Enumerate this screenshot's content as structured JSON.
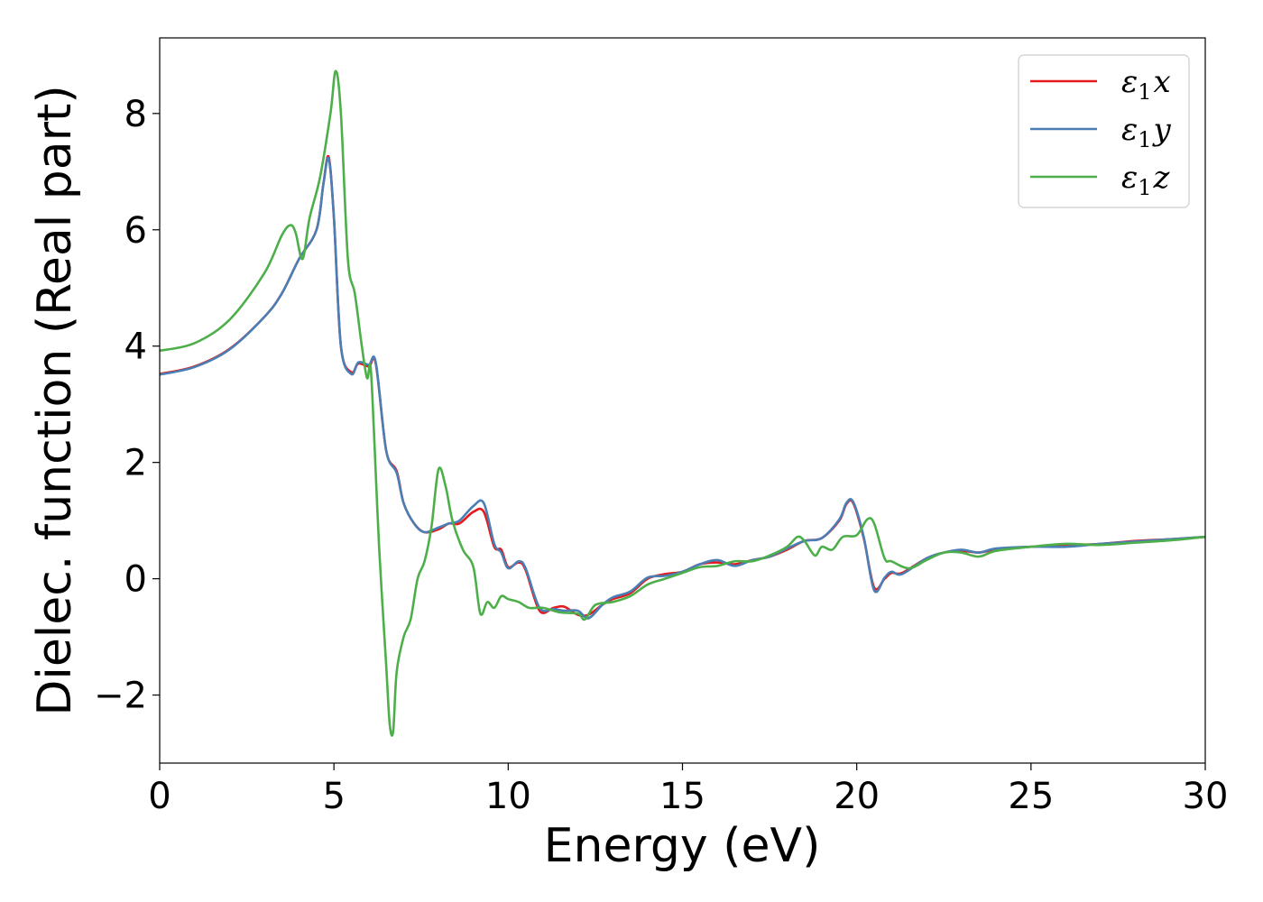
{
  "chart_data": {
    "type": "line",
    "title": "",
    "xlabel": "Energy (eV)",
    "ylabel": "Dielec. function (Real part)",
    "xlim": [
      0,
      30
    ],
    "ylim": [
      -3.17,
      9.3
    ],
    "grid": false,
    "legend_position": "top-right",
    "x_ticks": [
      0,
      5,
      10,
      15,
      20,
      25,
      30
    ],
    "x_tick_labels": [
      "0",
      "5",
      "10",
      "15",
      "20",
      "25",
      "30"
    ],
    "y_ticks": [
      -2,
      0,
      2,
      4,
      6,
      8
    ],
    "y_tick_labels": [
      "−2",
      "0",
      "2",
      "4",
      "6",
      "8"
    ],
    "series": [
      {
        "name": "ε₁x",
        "legend_base": "ε",
        "legend_sub": "1",
        "legend_suffix": "x",
        "color": "#e41a1c",
        "x": [
          0,
          1,
          2,
          3,
          3.5,
          4,
          4.5,
          4.7,
          4.85,
          5.0,
          5.2,
          5.5,
          5.7,
          6.0,
          6.2,
          6.5,
          6.8,
          7.0,
          7.3,
          7.6,
          8.0,
          8.3,
          8.6,
          9.0,
          9.3,
          9.6,
          9.8,
          10.0,
          10.3,
          10.5,
          10.9,
          11.3,
          11.6,
          12.0,
          12.3,
          12.7,
          13.0,
          13.5,
          14.0,
          14.5,
          15.0,
          15.5,
          16.0,
          16.5,
          17.0,
          17.5,
          18.0,
          18.5,
          19.0,
          19.5,
          19.7,
          19.9,
          20.2,
          20.5,
          20.8,
          21.0,
          21.3,
          22.0,
          22.5,
          23.0,
          23.5,
          24.0,
          25.0,
          26.0,
          27.0,
          28.0,
          29.0,
          30.0
        ],
        "y": [
          3.52,
          3.65,
          3.95,
          4.5,
          4.9,
          5.5,
          6.0,
          6.8,
          7.25,
          6.2,
          4.0,
          3.55,
          3.7,
          3.65,
          3.7,
          2.2,
          1.85,
          1.3,
          0.95,
          0.8,
          0.85,
          0.95,
          0.95,
          1.15,
          1.15,
          0.55,
          0.5,
          0.2,
          0.28,
          0.15,
          -0.55,
          -0.5,
          -0.48,
          -0.62,
          -0.62,
          -0.45,
          -0.35,
          -0.25,
          0.0,
          0.08,
          0.12,
          0.25,
          0.28,
          0.25,
          0.32,
          0.38,
          0.5,
          0.65,
          0.7,
          1.0,
          1.28,
          1.3,
          0.7,
          -0.15,
          0.0,
          0.1,
          0.1,
          0.35,
          0.45,
          0.48,
          0.45,
          0.5,
          0.55,
          0.57,
          0.6,
          0.65,
          0.68,
          0.72
        ]
      },
      {
        "name": "ε₁y",
        "legend_base": "ε",
        "legend_sub": "1",
        "legend_suffix": "y",
        "color": "#4a7fb5",
        "x": [
          0,
          1,
          2,
          3,
          3.5,
          4,
          4.5,
          4.7,
          4.85,
          5.0,
          5.2,
          5.5,
          5.7,
          6.0,
          6.2,
          6.5,
          6.8,
          7.0,
          7.3,
          7.6,
          8.0,
          8.3,
          8.6,
          9.0,
          9.3,
          9.6,
          9.8,
          10.0,
          10.3,
          10.5,
          10.9,
          11.3,
          11.6,
          12.0,
          12.3,
          12.7,
          13.0,
          13.5,
          14.0,
          14.5,
          15.0,
          15.5,
          16.0,
          16.5,
          17.0,
          17.5,
          18.0,
          18.5,
          19.0,
          19.5,
          19.7,
          19.9,
          20.2,
          20.5,
          20.8,
          21.0,
          21.3,
          22.0,
          22.5,
          23.0,
          23.5,
          24.0,
          25.0,
          26.0,
          27.0,
          28.0,
          29.0,
          30.0
        ],
        "y": [
          3.51,
          3.64,
          3.94,
          4.5,
          4.9,
          5.5,
          6.0,
          6.8,
          7.22,
          6.2,
          4.0,
          3.52,
          3.72,
          3.68,
          3.72,
          2.2,
          1.82,
          1.3,
          0.95,
          0.8,
          0.88,
          0.95,
          1.0,
          1.25,
          1.3,
          0.6,
          0.45,
          0.18,
          0.3,
          0.18,
          -0.5,
          -0.52,
          -0.55,
          -0.55,
          -0.68,
          -0.45,
          -0.32,
          -0.22,
          0.02,
          0.05,
          0.12,
          0.25,
          0.32,
          0.22,
          0.32,
          0.38,
          0.52,
          0.65,
          0.7,
          1.02,
          1.3,
          1.32,
          0.72,
          -0.2,
          0.02,
          0.12,
          0.08,
          0.35,
          0.45,
          0.5,
          0.45,
          0.52,
          0.55,
          0.55,
          0.6,
          0.64,
          0.68,
          0.72
        ]
      },
      {
        "name": "ε₁z",
        "legend_base": "ε",
        "legend_sub": "1",
        "legend_suffix": "z",
        "color": "#4daf4a",
        "x": [
          0,
          1,
          2,
          3,
          3.5,
          3.75,
          3.9,
          4.1,
          4.3,
          4.6,
          4.9,
          5.05,
          5.2,
          5.4,
          5.6,
          5.8,
          5.95,
          6.05,
          6.15,
          6.3,
          6.5,
          6.6,
          6.7,
          6.8,
          7.0,
          7.2,
          7.4,
          7.6,
          7.8,
          8.0,
          8.2,
          8.4,
          8.7,
          9.0,
          9.2,
          9.4,
          9.6,
          9.8,
          10.0,
          10.3,
          10.6,
          11.0,
          11.5,
          12.0,
          12.2,
          12.5,
          13.0,
          13.5,
          14.0,
          14.5,
          15.0,
          15.5,
          16.0,
          16.5,
          17.0,
          17.5,
          18.0,
          18.3,
          18.5,
          18.8,
          19.0,
          19.3,
          19.6,
          20.0,
          20.3,
          20.5,
          20.8,
          21.0,
          21.5,
          22.0,
          22.5,
          23.0,
          23.5,
          24.0,
          25.0,
          26.0,
          27.0,
          28.0,
          29.0,
          30.0
        ],
        "y": [
          3.92,
          4.05,
          4.45,
          5.25,
          5.9,
          6.08,
          5.95,
          5.5,
          6.2,
          6.9,
          8.0,
          8.73,
          8.0,
          5.5,
          4.9,
          4.0,
          3.45,
          3.65,
          2.5,
          0.5,
          -1.5,
          -2.5,
          -2.62,
          -1.6,
          -1.0,
          -0.7,
          0.0,
          0.3,
          0.9,
          1.88,
          1.6,
          1.0,
          0.5,
          0.2,
          -0.6,
          -0.4,
          -0.5,
          -0.3,
          -0.35,
          -0.4,
          -0.5,
          -0.5,
          -0.58,
          -0.6,
          -0.7,
          -0.45,
          -0.4,
          -0.3,
          -0.1,
          0.0,
          0.1,
          0.2,
          0.22,
          0.3,
          0.3,
          0.4,
          0.55,
          0.72,
          0.65,
          0.4,
          0.55,
          0.5,
          0.72,
          0.75,
          1.02,
          0.95,
          0.35,
          0.3,
          0.18,
          0.32,
          0.45,
          0.45,
          0.38,
          0.48,
          0.55,
          0.6,
          0.58,
          0.62,
          0.66,
          0.72
        ]
      }
    ]
  }
}
